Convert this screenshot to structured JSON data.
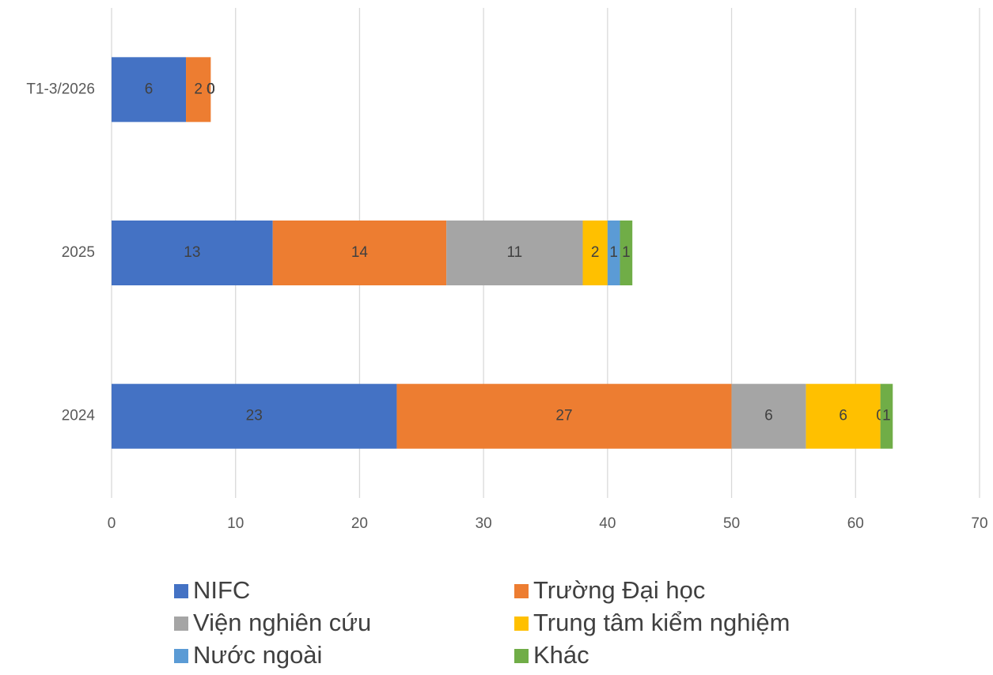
{
  "chart_data": {
    "type": "stacked_barh",
    "categories": [
      "T1-3/2026",
      "2025",
      "2024"
    ],
    "series": [
      {
        "name": "NIFC",
        "color": "#4472c4",
        "values": [
          6,
          13,
          23
        ]
      },
      {
        "name": "Trường Đại học",
        "color": "#ed7d31",
        "values": [
          2,
          14,
          27
        ]
      },
      {
        "name": "Viện nghiên cứu",
        "color": "#a5a5a5",
        "values": [
          0,
          11,
          6
        ]
      },
      {
        "name": "Trung tâm kiểm nghiệm",
        "color": "#ffc000",
        "values": [
          0,
          2,
          6
        ]
      },
      {
        "name": "Nước ngoài",
        "color": "#5b9bd5",
        "values": [
          0,
          1,
          0
        ]
      },
      {
        "name": "Khác",
        "color": "#70ad47",
        "values": [
          0,
          1,
          1
        ]
      }
    ],
    "xlim": [
      0,
      70
    ],
    "xticks": [
      0,
      10,
      20,
      30,
      40,
      50,
      60,
      70
    ],
    "grid": true,
    "legend": "bottom"
  }
}
